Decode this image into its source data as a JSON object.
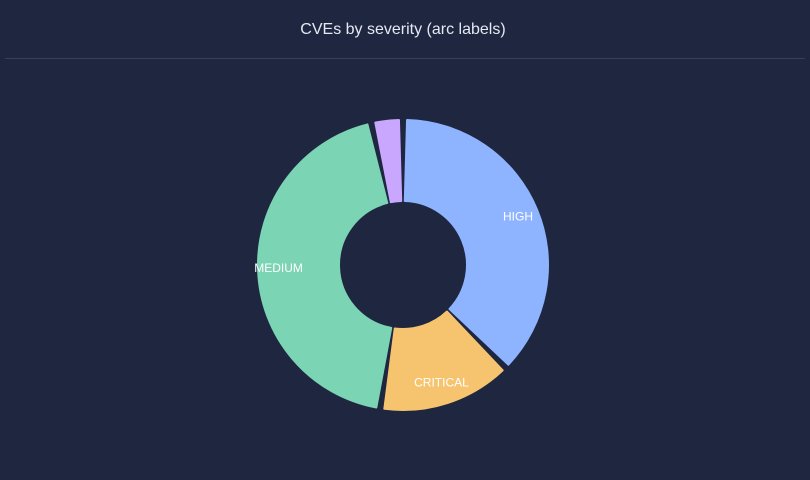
{
  "chart_data": {
    "type": "donut",
    "title": "CVEs by severity (arc labels)",
    "categories": [
      "HIGH",
      "CRITICAL",
      "MEDIUM",
      null
    ],
    "values": [
      37.5,
      15,
      44,
      3.5
    ],
    "colors": [
      "#8fb4ff",
      "#f6c46e",
      "#7bd4b4",
      "#c9a7ff"
    ]
  }
}
